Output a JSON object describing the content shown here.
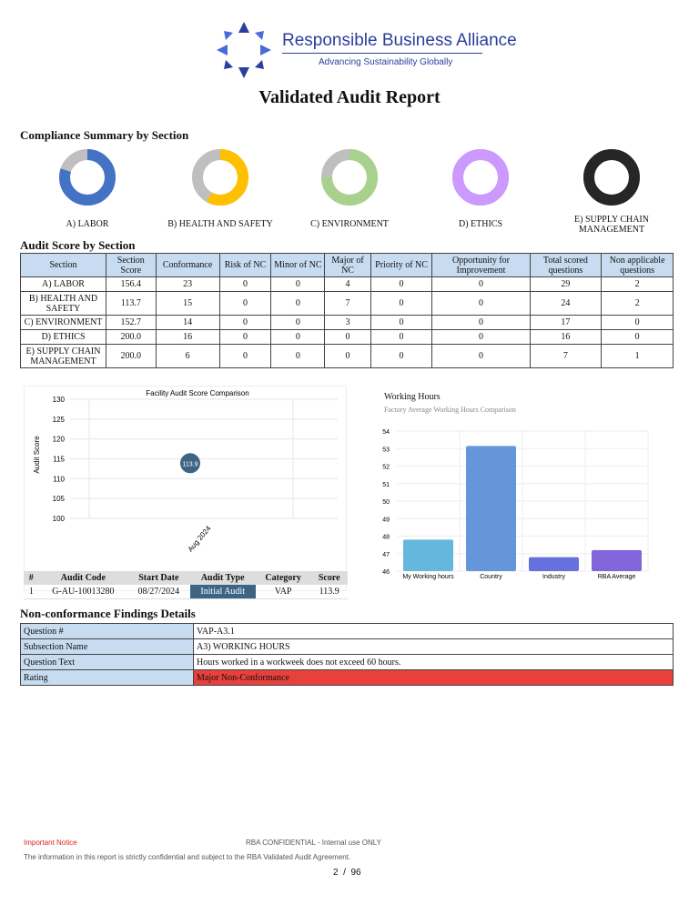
{
  "header": {
    "logo_text": "Responsible Business Alliance",
    "logo_tagline": "Advancing Sustainability Globally",
    "title": "Validated Audit Report"
  },
  "compliance": {
    "title": "Compliance Summary by Section",
    "donuts": [
      {
        "label": "A) LABOR",
        "fraction": 0.8,
        "color": "#4472c4"
      },
      {
        "label": "B) HEALTH AND SAFETY",
        "fraction": 0.58,
        "color": "#ffc000"
      },
      {
        "label": "C) ENVIRONMENT",
        "fraction": 0.75,
        "color": "#a9d18e"
      },
      {
        "label": "D) ETHICS",
        "fraction": 1.0,
        "color": "#cc99ff"
      },
      {
        "label": "E) SUPPLY CHAIN MANAGEMENT",
        "fraction": 1.0,
        "color": "#262626"
      }
    ]
  },
  "score_table": {
    "title": "Audit Score by Section",
    "headers": [
      "Section",
      "Section Score",
      "Conformance",
      "Risk of NC",
      "Minor of NC",
      "Major of NC",
      "Priority of NC",
      "Opportunity for Improvement",
      "Total scored questions",
      "Non applicable questions"
    ],
    "rows": [
      [
        "A) LABOR",
        "156.4",
        "23",
        "0",
        "0",
        "4",
        "0",
        "0",
        "29",
        "2"
      ],
      [
        "B) HEALTH AND SAFETY",
        "113.7",
        "15",
        "0",
        "0",
        "7",
        "0",
        "0",
        "24",
        "2"
      ],
      [
        "C) ENVIRONMENT",
        "152.7",
        "14",
        "0",
        "0",
        "3",
        "0",
        "0",
        "17",
        "0"
      ],
      [
        "D) ETHICS",
        "200.0",
        "16",
        "0",
        "0",
        "0",
        "0",
        "0",
        "16",
        "0"
      ],
      [
        "E) SUPPLY CHAIN MANAGEMENT",
        "200.0",
        "6",
        "0",
        "0",
        "0",
        "0",
        "0",
        "7",
        "1"
      ]
    ]
  },
  "chart_data": [
    {
      "type": "scatter",
      "title": "Facility Audit Score Comparison",
      "ylabel": "Audit Score",
      "xlabel": "",
      "ylim": [
        100,
        130
      ],
      "yticks": [
        100,
        105,
        110,
        115,
        120,
        125,
        130
      ],
      "categories": [
        "Aug 2024"
      ],
      "values": [
        113.9
      ],
      "data_labels": [
        "113.9"
      ],
      "point_color": "#3d6485",
      "grid": true
    },
    {
      "type": "bar",
      "title": "Working Hours",
      "subtitle": "Factory Average Working Hours Comparison",
      "ylim": [
        46,
        54
      ],
      "yticks": [
        46,
        47,
        48,
        49,
        50,
        51,
        52,
        53,
        54
      ],
      "categories": [
        "My Working hours",
        "Country",
        "Industry",
        "RBA Average"
      ],
      "values": [
        47.8,
        53.15,
        46.8,
        47.2
      ],
      "colors": [
        "#65b7de",
        "#6595da",
        "#6771dd",
        "#8066da"
      ],
      "grid": true
    }
  ],
  "audit_table": {
    "headers": [
      "#",
      "Audit Code",
      "Start Date",
      "Audit Type",
      "Category",
      "Score"
    ],
    "row": [
      "1",
      "G-AU-10013280",
      "08/27/2024",
      "Initial Audit",
      "VAP",
      "113.9"
    ]
  },
  "findings": {
    "title": "Non-conformance Findings Details",
    "rows": [
      {
        "label": "Question #",
        "value": "VAP-A3.1"
      },
      {
        "label": "Subsection Name",
        "value": "A3) WORKING HOURS"
      },
      {
        "label": "Question Text",
        "value": "Hours worked in a workweek does not exceed 60 hours."
      },
      {
        "label": "Rating",
        "value": "Major Non-Conformance",
        "color": "#e8413c"
      }
    ]
  },
  "footer": {
    "notice": "Important Notice",
    "confidential": "RBA CONFIDENTIAL - Internal use ONLY",
    "disclaimer": "The information in this report is strictly confidential and subject to the RBA Validated Audit Agreement.",
    "page": "2",
    "page_sep": "/",
    "total_pages": "96"
  }
}
